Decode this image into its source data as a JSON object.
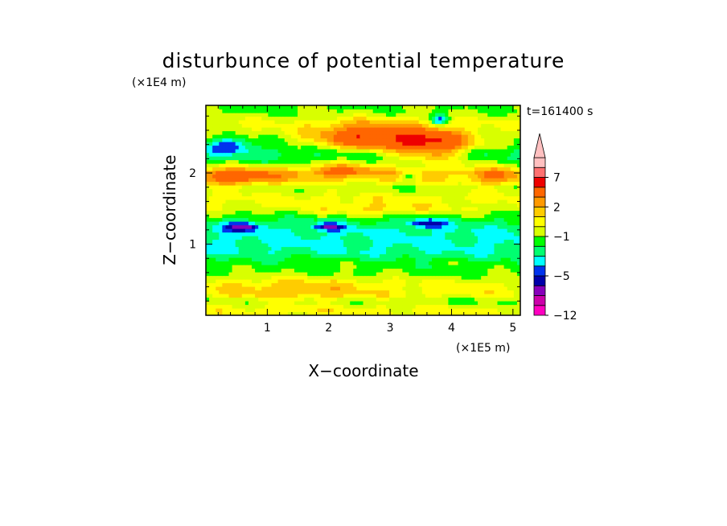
{
  "chart_data": {
    "type": "heatmap",
    "title": "disturbunce of potential temperature",
    "xlabel": "X−coordinate",
    "ylabel": "Z−coordinate",
    "x_unit_label": "(×1E5 m)",
    "y_unit_label": "(×1E4 m)",
    "time_label": "t=161400 s",
    "xlim": [
      0,
      5.12
    ],
    "ylim": [
      0,
      2.95
    ],
    "x_ticks": [
      {
        "value": 1,
        "label": "1"
      },
      {
        "value": 2,
        "label": "2"
      },
      {
        "value": 3,
        "label": "3"
      },
      {
        "value": 4,
        "label": "4"
      },
      {
        "value": 5,
        "label": "5"
      }
    ],
    "y_ticks": [
      {
        "value": 1,
        "label": "1"
      },
      {
        "value": 2,
        "label": "2"
      }
    ],
    "colorbar": {
      "levels": [
        -12,
        -10,
        -8,
        -6,
        -5,
        -4,
        -3,
        -2,
        -1,
        0,
        1,
        2,
        3,
        5,
        7,
        9,
        11
      ],
      "colors": [
        "#ff00c0",
        "#cc00aa",
        "#8800bb",
        "#0000aa",
        "#0033ee",
        "#00ffff",
        "#00ff70",
        "#00ff00",
        "#d8ff00",
        "#ffff00",
        "#ffcc00",
        "#ff9900",
        "#ff6600",
        "#ee0000",
        "#ff7070",
        "#ffc0c0"
      ],
      "tick_labels": [
        {
          "value": -12,
          "label": "−12"
        },
        {
          "value": -5,
          "label": "−5"
        },
        {
          "value": -1,
          "label": "−1"
        },
        {
          "value": 2,
          "label": "2"
        },
        {
          "value": 7,
          "label": "7"
        }
      ],
      "extend": "max"
    },
    "bands": [
      {
        "z": 0.1,
        "value": 0.3
      },
      {
        "z": 0.2,
        "value": -1.2
      },
      {
        "z": 0.3,
        "value": 0.4
      },
      {
        "z": 0.45,
        "value": 0.2
      },
      {
        "z": 0.6,
        "value": -1.3
      },
      {
        "z": 0.75,
        "value": -1.6
      },
      {
        "z": 0.9,
        "value": -3.0
      },
      {
        "z": 1.05,
        "value": -3.2
      },
      {
        "z": 1.2,
        "value": -3.0
      },
      {
        "z": 1.35,
        "value": -2.0
      },
      {
        "z": 1.5,
        "value": -0.3
      },
      {
        "z": 1.65,
        "value": 0.3
      },
      {
        "z": 1.8,
        "value": -0.8
      },
      {
        "z": 1.9,
        "value": 0.7
      },
      {
        "z": 2.0,
        "value": 1.3
      },
      {
        "z": 2.1,
        "value": -0.6
      },
      {
        "z": 2.2,
        "value": -2.0
      },
      {
        "z": 2.3,
        "value": -2.6
      },
      {
        "z": 2.4,
        "value": -1.4
      },
      {
        "z": 2.55,
        "value": -0.5
      },
      {
        "z": 2.7,
        "value": 0.1
      },
      {
        "z": 2.85,
        "value": -1.0
      },
      {
        "z": 2.95,
        "value": -1.2
      }
    ],
    "features": [
      {
        "x": 2.6,
        "z": 2.5,
        "sx": 0.85,
        "sz": 0.2,
        "amp": 5.5
      },
      {
        "x": 3.7,
        "z": 2.4,
        "sx": 0.65,
        "sz": 0.22,
        "amp": 6.0
      },
      {
        "x": 0.5,
        "z": 1.95,
        "sx": 0.7,
        "sz": 0.12,
        "amp": 3.5
      },
      {
        "x": 2.2,
        "z": 2.05,
        "sx": 0.6,
        "sz": 0.1,
        "amp": 3.0
      },
      {
        "x": 0.6,
        "z": 1.25,
        "sx": 0.3,
        "sz": 0.06,
        "amp": -4.0
      },
      {
        "x": 2.0,
        "z": 1.25,
        "sx": 0.25,
        "sz": 0.05,
        "amp": -3.5
      },
      {
        "x": 3.6,
        "z": 1.3,
        "sx": 0.3,
        "sz": 0.06,
        "amp": -3.5
      },
      {
        "x": 0.4,
        "z": 2.4,
        "sx": 0.35,
        "sz": 0.1,
        "amp": -3.5
      },
      {
        "x": 3.8,
        "z": 2.75,
        "sx": 0.15,
        "sz": 0.08,
        "amp": -4.0
      },
      {
        "x": 3.3,
        "z": 1.95,
        "sx": 0.12,
        "sz": 0.05,
        "amp": -3.0
      },
      {
        "x": 2.8,
        "z": 1.5,
        "sx": 1.0,
        "sz": 0.1,
        "amp": 1.5
      },
      {
        "x": 4.7,
        "z": 1.95,
        "sx": 0.4,
        "sz": 0.15,
        "amp": 2.0
      },
      {
        "x": 1.5,
        "z": 0.35,
        "sx": 1.2,
        "sz": 0.2,
        "amp": 1.5
      }
    ]
  }
}
